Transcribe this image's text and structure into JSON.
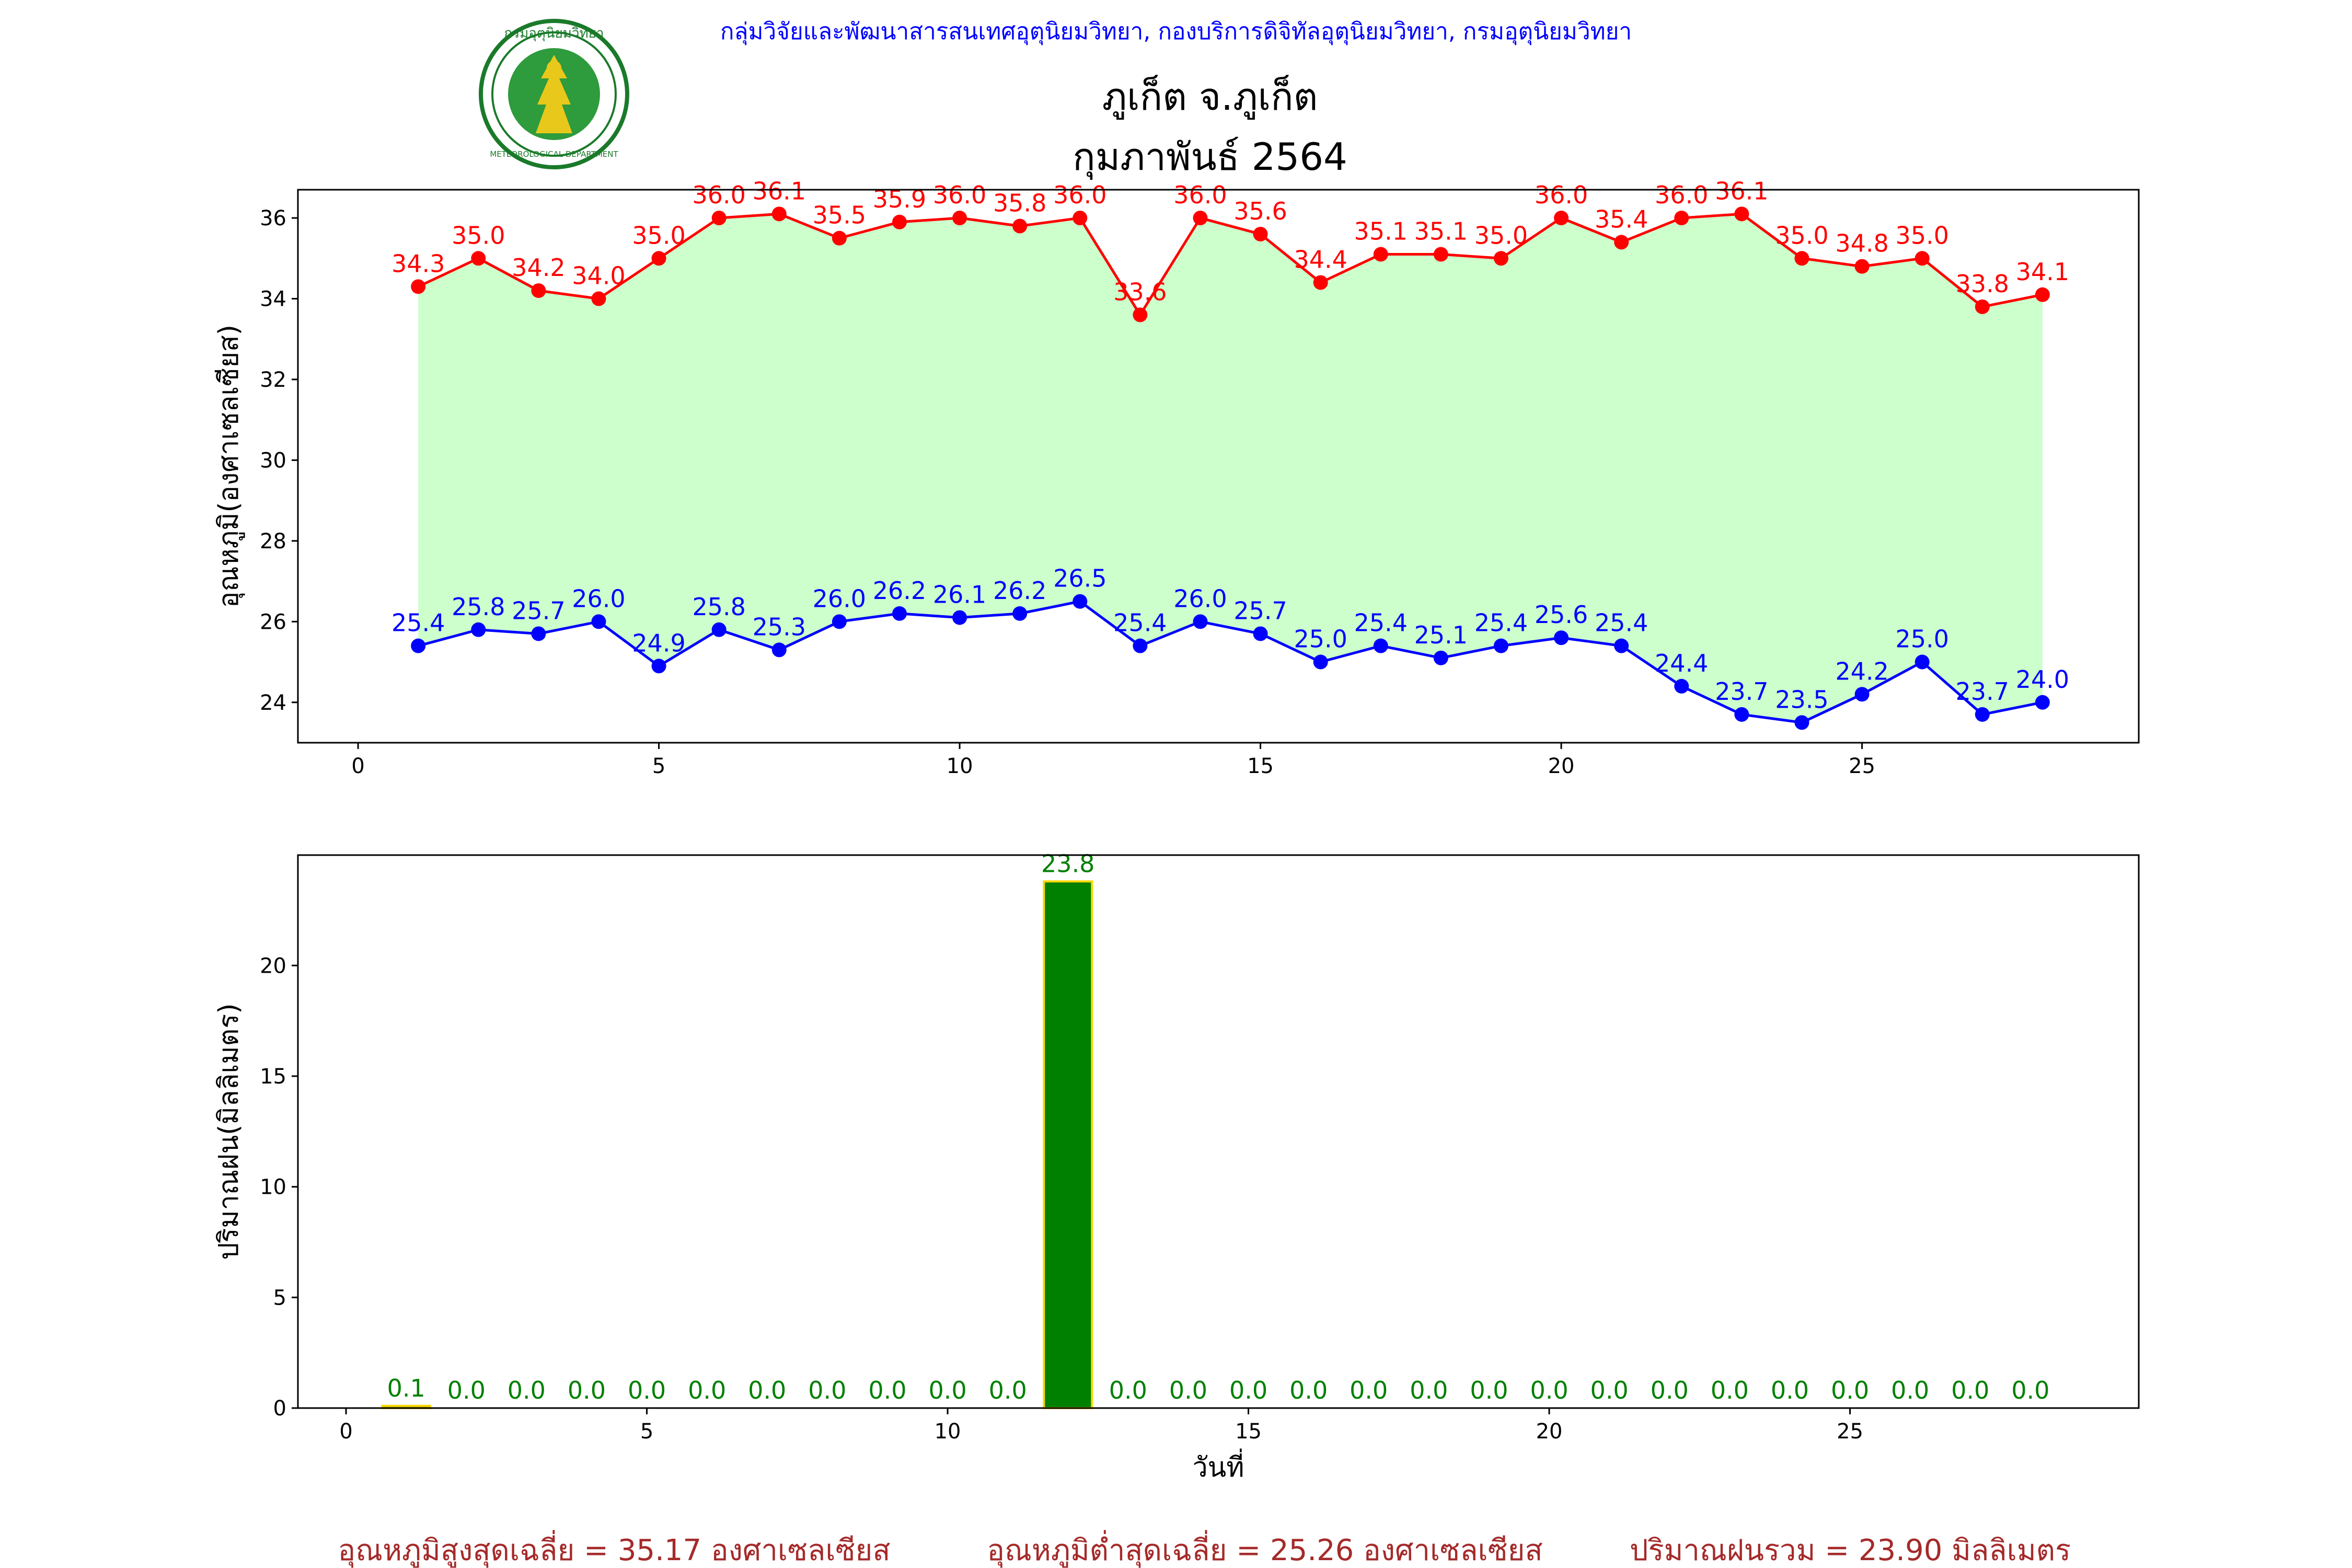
{
  "header": {
    "agency_line": "กลุ่มวิจัยและพัฒนาสารสนเทศอุตุนิยมวิทยา, กองบริการดิจิทัลอุตุนิยมวิทยา, กรมอุตุนิยมวิทยา",
    "logo_text": "กรมอุตุนิยมวิทยา",
    "logo_subtext": "METEOROLOGICAL DEPARTMENT",
    "station": "ภูเก็ต จ.ภูเก็ต",
    "period": "กุมภาพันธ์ 2564"
  },
  "colors": {
    "agency": "#0000ff",
    "max_temp": "#ff0000",
    "min_temp": "#0000ff",
    "fill": "#ccffcc",
    "rain_bar": "#008000",
    "rain_edge": "#ffd700",
    "footer": "#a52a2a"
  },
  "chart_data": [
    {
      "type": "line",
      "ylabel": "อุณหภูมิ(องศาเซลเซียส)",
      "xlabel": "",
      "xlim": [
        -1,
        29.6
      ],
      "ylim": [
        23.0,
        36.7
      ],
      "xticks": [
        0,
        5,
        10,
        15,
        20,
        25
      ],
      "yticks": [
        24,
        26,
        28,
        30,
        32,
        34,
        36
      ],
      "x": [
        1,
        2,
        3,
        4,
        5,
        6,
        7,
        8,
        9,
        10,
        11,
        12,
        13,
        14,
        15,
        16,
        17,
        18,
        19,
        20,
        21,
        22,
        23,
        24,
        25,
        26,
        27,
        28
      ],
      "series": [
        {
          "key": "max",
          "values": [
            34.3,
            35.0,
            34.2,
            34.0,
            35.0,
            36.0,
            36.1,
            35.5,
            35.9,
            36.0,
            35.8,
            36.0,
            33.6,
            36.0,
            35.6,
            34.4,
            35.1,
            35.1,
            35.0,
            36.0,
            35.4,
            36.0,
            36.1,
            35.0,
            34.8,
            35.0,
            33.8,
            34.1
          ],
          "labels": [
            "34.3",
            "35.0",
            "34.2",
            "34.0",
            "35.0",
            "36.0",
            "36.1",
            "35.5",
            "35.9",
            "36.0",
            "35.8",
            "36.0",
            "33.6",
            "36.0",
            "35.6",
            "34.4",
            "35.1",
            "35.1",
            "35.0",
            "36.0",
            "35.4",
            "36.0",
            "36.1",
            "35.0",
            "34.8",
            "35.0",
            "33.8",
            "34.1"
          ]
        },
        {
          "key": "min",
          "values": [
            25.4,
            25.8,
            25.7,
            26.0,
            24.9,
            25.8,
            25.3,
            26.0,
            26.2,
            26.1,
            26.2,
            26.5,
            25.4,
            26.0,
            25.7,
            25.0,
            25.4,
            25.1,
            25.4,
            25.6,
            25.4,
            24.4,
            23.7,
            23.5,
            24.2,
            25.0,
            23.7,
            24.0
          ],
          "labels": [
            "25.4",
            "25.8",
            "25.7",
            "26.0",
            "24.9",
            "25.8",
            "25.3",
            "26.0",
            "26.2",
            "26.1",
            "26.2",
            "26.5",
            "25.4",
            "26.0",
            "25.7",
            "25.0",
            "25.4",
            "25.1",
            "25.4",
            "25.6",
            "25.4",
            "24.4",
            "23.7",
            "23.5",
            "24.2",
            "25.0",
            "23.7",
            "24.0"
          ]
        }
      ]
    },
    {
      "type": "bar",
      "ylabel": "ปริมาณฝน(มิลลิเมตร)",
      "xlabel": "วันที่",
      "xlim": [
        -0.8,
        29.8
      ],
      "ylim": [
        0,
        24.99
      ],
      "xticks": [
        0,
        5,
        10,
        15,
        20,
        25
      ],
      "yticks": [
        0,
        5,
        10,
        15,
        20
      ],
      "x": [
        1,
        2,
        3,
        4,
        5,
        6,
        7,
        8,
        9,
        10,
        11,
        12,
        13,
        14,
        15,
        16,
        17,
        18,
        19,
        20,
        21,
        22,
        23,
        24,
        25,
        26,
        27,
        28
      ],
      "values": [
        0.1,
        0.0,
        0.0,
        0.0,
        0.0,
        0.0,
        0.0,
        0.0,
        0.0,
        0.0,
        0.0,
        23.8,
        0.0,
        0.0,
        0.0,
        0.0,
        0.0,
        0.0,
        0.0,
        0.0,
        0.0,
        0.0,
        0.0,
        0.0,
        0.0,
        0.0,
        0.0,
        0.0
      ],
      "labels": [
        "0.1",
        "0.0",
        "0.0",
        "0.0",
        "0.0",
        "0.0",
        "0.0",
        "0.0",
        "0.0",
        "0.0",
        "0.0",
        "23.8",
        "0.0",
        "0.0",
        "0.0",
        "0.0",
        "0.0",
        "0.0",
        "0.0",
        "0.0",
        "0.0",
        "0.0",
        "0.0",
        "0.0",
        "0.0",
        "0.0",
        "0.0",
        "0.0"
      ]
    }
  ],
  "footer": {
    "avg_max": "อุณหภูมิสูงสุดเฉลี่ย = 35.17 องศาเซลเซียส",
    "avg_min": "อุณหภูมิต่ำสุดเฉลี่ย = 25.26 องศาเซลเซียส",
    "total_rain": "ปริมาณฝนรวม = 23.90 มิลลิเมตร"
  }
}
